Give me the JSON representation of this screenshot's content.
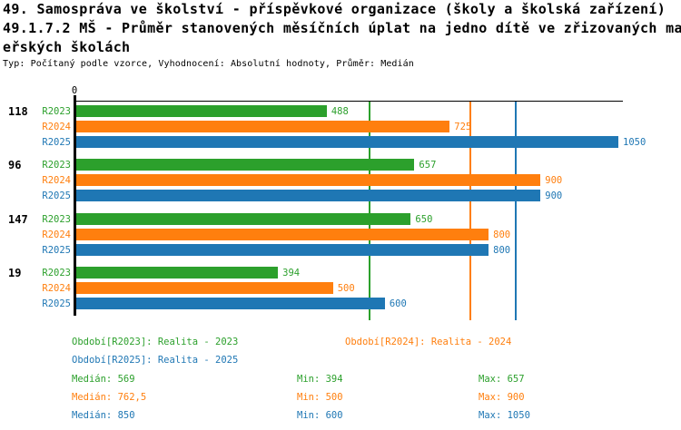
{
  "header": {
    "title_line1": "49. Samospráva ve školství - příspěvkové organizace (školy a školská zařízení)",
    "title_line2": "49.1.7.2 MŠ - Průměr stanovených měsíčních úplat na jedno dítě ve zřizovaných mat",
    "title_line3": "eřských školách",
    "subtitle": "Typ: Počítaný podle vzorce, Vyhodnocení: Absolutní hodnoty, Průměr: Medián"
  },
  "colors": {
    "r2023_green": "#2ca02c",
    "r2024_orange": "#ff7f0e",
    "r2025_blue": "#1f77b4",
    "axis_black": "#000000",
    "background": "#ffffff"
  },
  "chart_data": {
    "type": "bar",
    "orientation": "horizontal",
    "grid": "median-lines-only",
    "legend_position": "bottom",
    "x_axis": {
      "origin_tick_label": "0",
      "xlim": [
        0,
        1059
      ]
    },
    "categories": [
      "118",
      "96",
      "147",
      "19"
    ],
    "series": [
      {
        "name": "R2023",
        "color": "#2ca02c",
        "values": [
          488,
          657,
          650,
          394
        ],
        "value_labels": [
          "488",
          "657",
          "650",
          "394"
        ],
        "median": 569,
        "min": 394,
        "max": 657
      },
      {
        "name": "R2024",
        "color": "#ff7f0e",
        "values": [
          725,
          900,
          800,
          500
        ],
        "value_labels": [
          "725",
          "900",
          "800",
          "500"
        ],
        "median": 762.5,
        "min": 500,
        "max": 900
      },
      {
        "name": "R2025",
        "color": "#1f77b4",
        "values": [
          1050,
          900,
          800,
          600
        ],
        "value_labels": [
          "1050",
          "900",
          "800",
          "600"
        ],
        "median": 850,
        "min": 600,
        "max": 1050
      }
    ]
  },
  "legend": {
    "items": [
      {
        "label": "Období[R2023]: Realita - 2023",
        "color": "#2ca02c"
      },
      {
        "label": "Období[R2024]: Realita - 2024",
        "color": "#ff7f0e"
      },
      {
        "label": "Období[R2025]: Realita - 2025",
        "color": "#1f77b4"
      }
    ]
  },
  "stats": {
    "rows": [
      {
        "color": "#2ca02c",
        "median": "Medián: 569",
        "min": "Min: 394",
        "max": "Max: 657"
      },
      {
        "color": "#ff7f0e",
        "median": "Medián: 762,5",
        "min": "Min: 500",
        "max": "Max: 900"
      },
      {
        "color": "#1f77b4",
        "median": "Medián: 850",
        "min": "Min: 600",
        "max": "Max: 1050"
      }
    ]
  }
}
